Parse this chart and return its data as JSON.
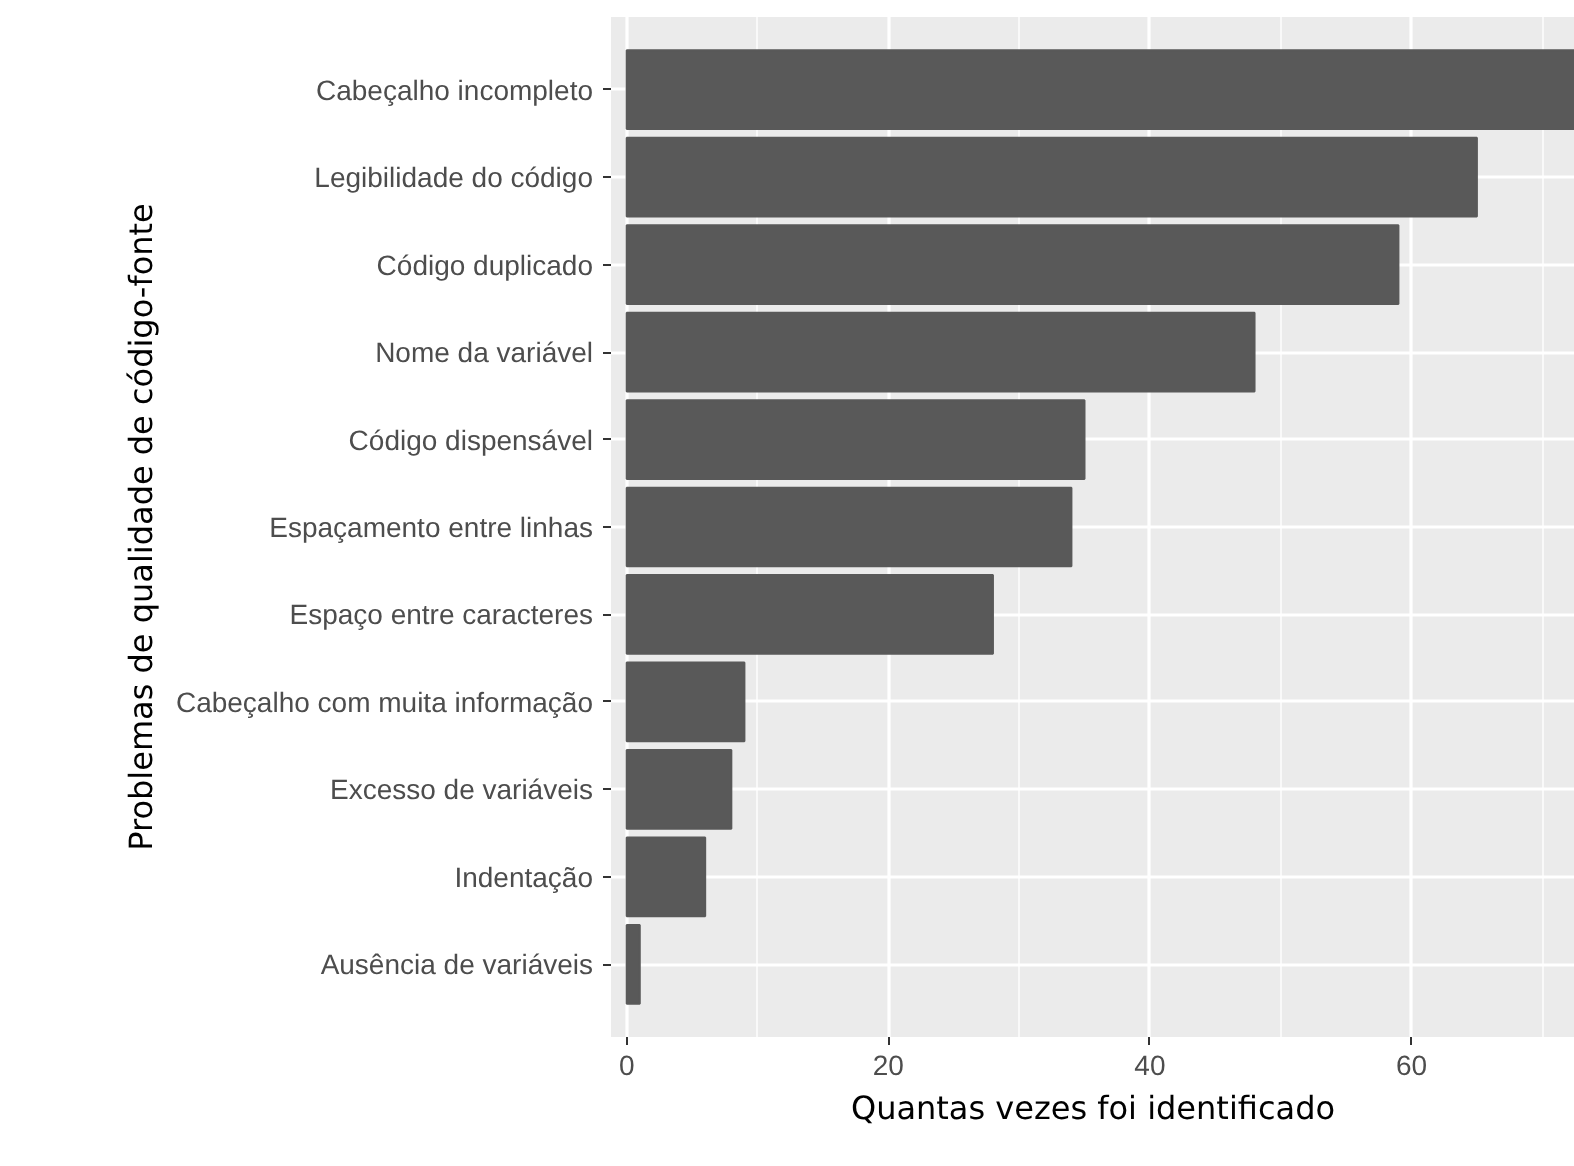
{
  "chart_data": {
    "type": "bar",
    "orientation": "horizontal",
    "xlabel": "Quantas vezes foi identificado",
    "ylabel": "Problemas de qualidade de código-fonte",
    "categories": [
      "Cabeçalho incompleto",
      "Legibilidade do código",
      "Código duplicado",
      "Nome da variável",
      "Código dispensável",
      "Espaçamento entre linhas",
      "Espaço entre caracteres",
      "Cabeçalho com muita informação",
      "Excesso de variáveis",
      "Indentação",
      "Ausência de variáveis"
    ],
    "values": [
      72.5,
      65,
      59,
      48,
      35,
      34,
      28,
      9,
      8,
      6,
      1
    ],
    "color": "#595959",
    "xlim": [
      -1.2,
      72.5
    ],
    "xticks": [
      0,
      20,
      40,
      60
    ],
    "grid": true
  }
}
